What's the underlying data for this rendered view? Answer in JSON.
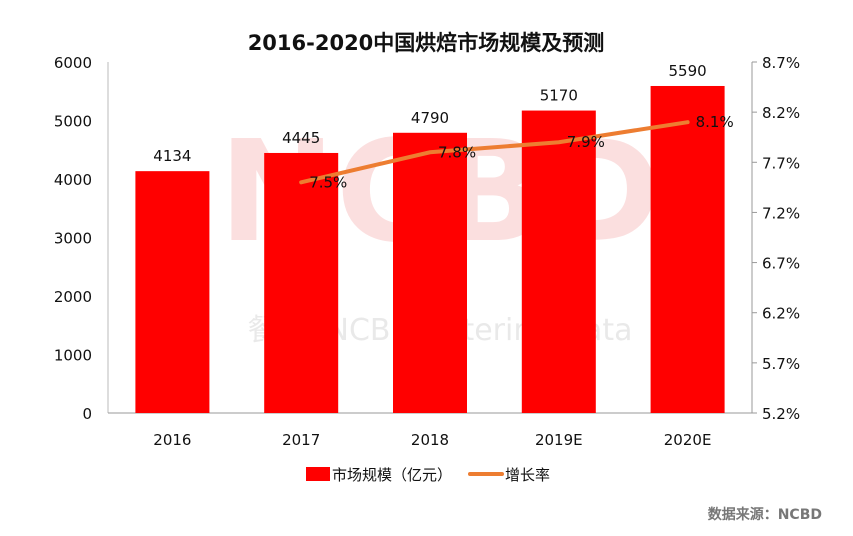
{
  "chart_data": {
    "type": "bar+line",
    "title": "2016-2020中国烘焙市场规模及预测",
    "categories": [
      "2016",
      "2017",
      "2018",
      "2019E",
      "2020E"
    ],
    "series": [
      {
        "name": "市场规模（亿元）",
        "type": "bar",
        "axis": "left",
        "color": "#ff0000",
        "values": [
          4134,
          4445,
          4790,
          5170,
          5590
        ],
        "labels": [
          "4134",
          "4445",
          "4790",
          "5170",
          "5590"
        ]
      },
      {
        "name": "增长率",
        "type": "line",
        "axis": "right",
        "color": "#ed7d31",
        "values": [
          null,
          7.5,
          7.8,
          7.9,
          8.1
        ],
        "labels": [
          "",
          "7.5%",
          "7.8%",
          "7.9%",
          "8.1%"
        ]
      }
    ],
    "y_left": {
      "range": [
        0,
        6000
      ],
      "ticks": [
        "0",
        "1000",
        "2000",
        "3000",
        "4000",
        "5000",
        "6000"
      ]
    },
    "y_right": {
      "range": [
        5.2,
        8.7
      ],
      "ticks": [
        "5.2%",
        "5.7%",
        "6.2%",
        "6.7%",
        "7.2%",
        "7.7%",
        "8.2%",
        "8.7%"
      ]
    },
    "grid": false,
    "legend": "bottom",
    "source": "数据来源：NCBD",
    "watermark": "NCBD 餐饮 NCBD Catering Data"
  }
}
